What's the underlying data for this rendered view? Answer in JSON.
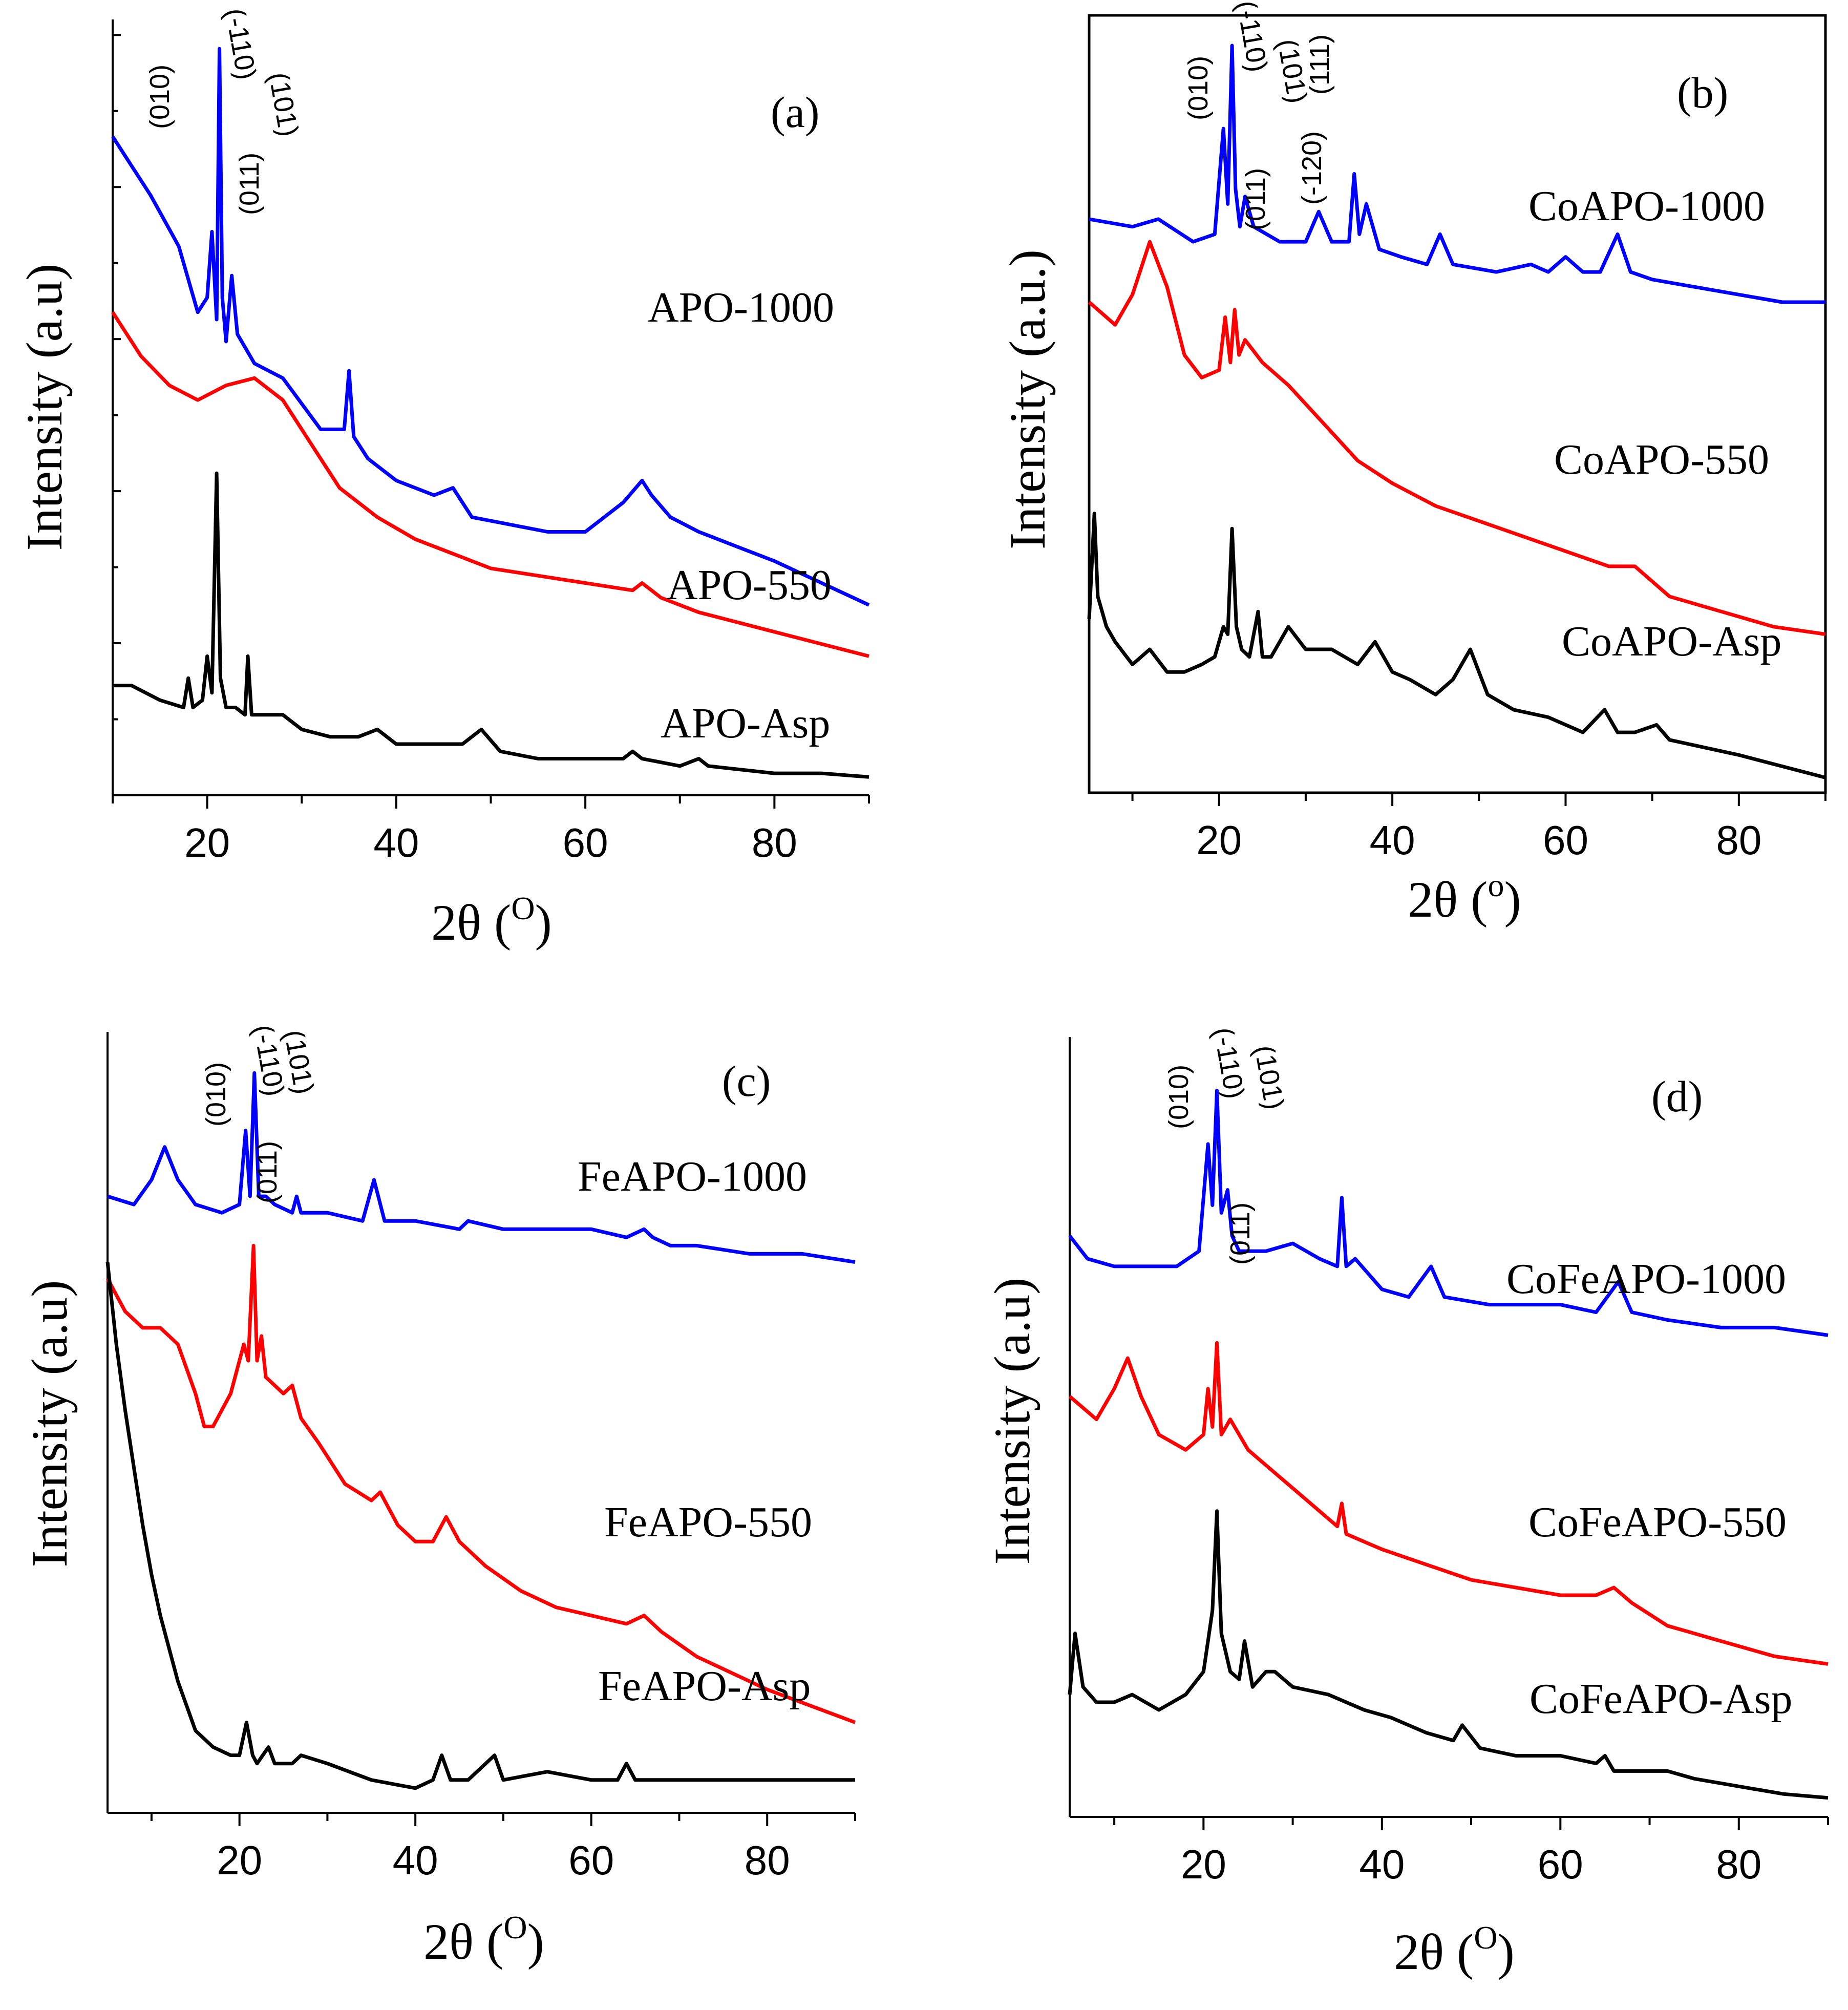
{
  "chart_data": [
    {
      "type": "line",
      "panel_label": "(a)",
      "xlabel": "2θ (",
      "xlabel_unit": "O",
      "xlabel_close": ")",
      "ylabel": "Intensity (a.u)",
      "xlim": [
        10,
        90
      ],
      "xticks": [
        20,
        40,
        60,
        80
      ],
      "xtick_labels": [
        "20",
        "40",
        "60",
        "80"
      ],
      "hkl_labels": [
        "(010)",
        "(-110)",
        "(011)",
        "(101)"
      ],
      "series": [
        {
          "name": "APO-1000",
          "color": "#0000ff",
          "x": [
            10,
            14,
            17,
            19,
            20,
            20.5,
            21,
            21.3,
            21.6,
            22,
            22.6,
            23.2,
            25,
            28,
            32,
            34.5,
            35,
            35.5,
            37,
            40,
            44,
            46,
            48,
            52,
            56,
            60,
            62,
            64,
            66,
            67,
            69,
            72,
            76,
            80,
            85,
            90
          ],
          "y": [
            88,
            80,
            73,
            64,
            66,
            75,
            63,
            100,
            66,
            60,
            69,
            61,
            57,
            55,
            48,
            48,
            56,
            47,
            44,
            41,
            39,
            40,
            36,
            35,
            34,
            34,
            36,
            38,
            41,
            39,
            36,
            34,
            32,
            30,
            27,
            24
          ]
        },
        {
          "name": "APO-550",
          "color": "#ff0000",
          "x": [
            10,
            13,
            16,
            19,
            22,
            25,
            28,
            31,
            34,
            38,
            42,
            46,
            50,
            55,
            60,
            65,
            66,
            68,
            72,
            78,
            84,
            90
          ],
          "y": [
            64,
            58,
            54,
            52,
            54,
            55,
            52,
            46,
            40,
            36,
            33,
            31,
            29,
            28,
            27,
            26,
            27,
            25,
            23,
            21,
            19,
            17
          ]
        },
        {
          "name": "APO-Asp",
          "color": "#000000",
          "x": [
            10,
            12,
            15,
            17.5,
            18,
            18.5,
            19.5,
            20,
            20.5,
            21,
            21.4,
            22,
            23,
            24,
            24.3,
            24.7,
            26,
            28,
            30,
            33,
            36,
            38,
            40,
            44,
            47,
            49,
            51,
            55,
            60,
            64,
            65,
            66,
            70,
            72,
            73,
            80,
            85,
            90
          ],
          "y": [
            13,
            13,
            11,
            10,
            14,
            10,
            11,
            17,
            12,
            42,
            14,
            10,
            10,
            9,
            17,
            9,
            9,
            9,
            7,
            6,
            6,
            7,
            5,
            5,
            5,
            7,
            4,
            3,
            3,
            3,
            4,
            3,
            2,
            3,
            2,
            1,
            1,
            0.5
          ]
        }
      ],
      "annotations": [
        "APO-1000",
        "APO-550",
        "APO-Asp"
      ]
    },
    {
      "type": "line",
      "panel_label": "(b)",
      "xlabel": "2θ (",
      "xlabel_unit": "o",
      "xlabel_close": ")",
      "ylabel": "Intensity (a.u.)",
      "xlim": [
        5,
        90
      ],
      "xticks": [
        20,
        40,
        60,
        80
      ],
      "xtick_labels": [
        "20",
        "40",
        "60",
        "80"
      ],
      "hkl_labels": [
        "(010)",
        "(-110)",
        "(011)",
        "(101)",
        "(-120)",
        "(111)"
      ],
      "series": [
        {
          "name": "CoAPO-1000",
          "color": "#0000ff",
          "x": [
            5,
            10,
            13,
            17,
            19.5,
            20.5,
            21,
            21.5,
            21.9,
            22.4,
            23,
            24,
            27,
            30,
            31.5,
            33,
            35,
            35.6,
            36.2,
            37,
            38.5,
            41,
            44,
            45.5,
            47,
            52,
            56,
            58,
            60,
            62,
            64,
            66,
            67.5,
            70,
            75,
            80,
            85,
            90
          ],
          "y": [
            73,
            72,
            73,
            70,
            71,
            85,
            75,
            96,
            77,
            72,
            76,
            72,
            70,
            70,
            74,
            70,
            70,
            79,
            71,
            75,
            69,
            68,
            67,
            71,
            67,
            66,
            67,
            66,
            68,
            66,
            66,
            71,
            66,
            65,
            64,
            63,
            62,
            62
          ]
        },
        {
          "name": "CoAPO-550",
          "color": "#ff0000",
          "x": [
            5,
            8,
            10,
            12,
            14,
            16,
            18,
            20,
            20.7,
            21.3,
            21.8,
            22.3,
            23,
            25,
            28,
            32,
            36,
            40,
            45,
            50,
            55,
            60,
            65,
            68,
            72,
            78,
            84,
            90
          ],
          "y": [
            62,
            59,
            63,
            70,
            64,
            55,
            52,
            53,
            60,
            54,
            61,
            55,
            57,
            54,
            51,
            46,
            41,
            38,
            35,
            33,
            31,
            29,
            27,
            27,
            23,
            21,
            19,
            18
          ]
        },
        {
          "name": "CoAPO-Asp",
          "color": "#000000",
          "x": [
            5,
            5.6,
            6,
            7,
            8,
            10,
            12,
            14,
            16,
            18,
            19.5,
            20.5,
            21,
            21.5,
            22,
            22.6,
            23.5,
            24.5,
            25,
            26,
            28,
            30,
            33,
            36,
            38,
            40,
            42,
            45,
            47,
            49,
            51,
            54,
            58,
            62,
            64.5,
            66,
            68,
            70.5,
            72,
            76,
            80,
            85,
            90
          ],
          "y": [
            20,
            34,
            23,
            19,
            17,
            14,
            16,
            13,
            13,
            14,
            15,
            19,
            18,
            32,
            19,
            16,
            15,
            21,
            15,
            15,
            19,
            16,
            16,
            14,
            17,
            13,
            12,
            10,
            12,
            16,
            10,
            8,
            7,
            5,
            8,
            5,
            5,
            6,
            4,
            3,
            2,
            0.5,
            -1
          ]
        }
      ],
      "annotations": [
        "CoAPO-1000",
        "CoAPO-550",
        "CoAPO-Asp"
      ]
    },
    {
      "type": "line",
      "panel_label": "(c)",
      "xlabel": "2θ (",
      "xlabel_unit": "O",
      "xlabel_close": ")",
      "ylabel": "Intensity (a.u)",
      "xlim": [
        5,
        90
      ],
      "xticks": [
        20,
        40,
        60,
        80
      ],
      "xtick_labels": [
        "20",
        "40",
        "60",
        "80"
      ],
      "hkl_labels": [
        "(010)",
        "(-110)",
        "(011)",
        "(101)"
      ],
      "series": [
        {
          "name": "FeAPO-1000",
          "color": "#0000ff",
          "x": [
            5,
            8,
            10,
            11.5,
            13,
            15,
            18,
            20,
            20.7,
            21.2,
            21.7,
            22.2,
            23,
            24,
            26,
            26.5,
            27,
            30,
            34,
            35.3,
            36.5,
            40,
            45,
            46,
            50,
            55,
            60,
            64,
            66,
            67,
            69,
            72,
            78,
            84,
            90
          ],
          "y": [
            80,
            79,
            82,
            86,
            82,
            79,
            78,
            79,
            88,
            80,
            95,
            80,
            80,
            79,
            78,
            80,
            78,
            78,
            77,
            82,
            77,
            77,
            76,
            77,
            76,
            76,
            76,
            75,
            76,
            75,
            74,
            74,
            73,
            73,
            72
          ]
        },
        {
          "name": "FeAPO-550",
          "color": "#ff0000",
          "x": [
            5,
            7,
            9,
            11,
            13,
            15,
            16,
            17,
            19,
            20.5,
            21,
            21.6,
            22,
            22.5,
            23,
            25,
            26,
            27,
            29,
            32,
            35,
            36,
            38,
            40,
            42,
            43.5,
            45,
            48,
            52,
            56,
            60,
            64,
            66,
            68,
            72,
            76,
            80,
            85,
            90
          ],
          "y": [
            70,
            66,
            64,
            64,
            62,
            56,
            52,
            52,
            56,
            62,
            60,
            74,
            60,
            63,
            58,
            56,
            57,
            53,
            50,
            45,
            43,
            44,
            40,
            38,
            38,
            41,
            38,
            35,
            32,
            30,
            29,
            28,
            29,
            27,
            24,
            22,
            20,
            18,
            16
          ]
        },
        {
          "name": "FeAPO-Asp",
          "color": "#000000",
          "x": [
            5,
            6,
            7,
            8,
            9,
            10,
            11,
            12,
            13,
            14,
            15,
            17,
            19,
            20,
            20.8,
            21.5,
            22,
            23.3,
            24,
            26,
            27,
            30,
            35,
            40,
            42,
            43,
            44,
            46,
            48,
            49,
            50,
            55,
            60,
            63,
            64,
            65,
            70,
            75,
            80,
            85,
            90
          ],
          "y": [
            72,
            62,
            54,
            47,
            40,
            34,
            29,
            25,
            21,
            18,
            15,
            13,
            12,
            12,
            16,
            12,
            11,
            13,
            11,
            11,
            12,
            11,
            9,
            8,
            9,
            12,
            9,
            9,
            11,
            12,
            9,
            10,
            9,
            9,
            11,
            9,
            9,
            9,
            9,
            9,
            9
          ]
        }
      ],
      "annotations": [
        "FeAPO-1000",
        "FeAPO-550",
        "FeAPO-Asp"
      ]
    },
    {
      "type": "line",
      "panel_label": "(d)",
      "xlabel": "2θ (",
      "xlabel_unit": "O",
      "xlabel_close": ")",
      "ylabel": "Intensity (a.u)",
      "xlim": [
        5,
        90
      ],
      "xticks": [
        20,
        40,
        60,
        80
      ],
      "xtick_labels": [
        "20",
        "40",
        "60",
        "80"
      ],
      "hkl_labels": [
        "(010)",
        "(-110)",
        "(011)",
        "(101)"
      ],
      "series": [
        {
          "name": "CoFeAPO-1000",
          "color": "#0000ff",
          "x": [
            5,
            7,
            10,
            14,
            17,
            19.5,
            20.5,
            21,
            21.5,
            22,
            22.7,
            23.2,
            24,
            27,
            30,
            33,
            35,
            35.5,
            36,
            37,
            40,
            43,
            45.5,
            47,
            52,
            56,
            60,
            64,
            66.5,
            68,
            72,
            78,
            84,
            90
          ],
          "y": [
            74,
            71,
            70,
            70,
            70,
            72,
            86,
            78,
            93,
            77,
            80,
            74,
            72,
            72,
            73,
            71,
            70,
            79,
            70,
            71,
            67,
            66,
            70,
            66,
            65,
            65,
            65,
            64,
            68,
            64,
            63,
            62,
            62,
            61
          ]
        },
        {
          "name": "CoFeAPO-550",
          "color": "#ff0000",
          "x": [
            5,
            8,
            10,
            11.5,
            13,
            15,
            18,
            20,
            20.5,
            21,
            21.5,
            22,
            23,
            25,
            28,
            32,
            35,
            35.5,
            36,
            40,
            45,
            50,
            55,
            60,
            64,
            66,
            68,
            72,
            78,
            84,
            90
          ],
          "y": [
            53,
            50,
            54,
            58,
            53,
            48,
            46,
            48,
            54,
            49,
            60,
            48,
            50,
            46,
            43,
            39,
            36,
            39,
            35,
            33,
            31,
            29,
            28,
            27,
            27,
            28,
            26,
            23,
            21,
            19,
            18
          ]
        },
        {
          "name": "CoFeAPO-Asp",
          "color": "#000000",
          "x": [
            5,
            5.6,
            6.5,
            8,
            10,
            12,
            15,
            18,
            20,
            21,
            21.5,
            22,
            23,
            24,
            24.6,
            25.5,
            27,
            28,
            30,
            34,
            38,
            41,
            45,
            48,
            49,
            51,
            55,
            60,
            64,
            65,
            66,
            70,
            72,
            75,
            80,
            85,
            90
          ],
          "y": [
            14,
            22,
            15,
            13,
            13,
            14,
            12,
            14,
            17,
            25,
            38,
            22,
            17,
            16,
            21,
            15,
            17,
            17,
            15,
            14,
            12,
            11,
            9,
            8,
            10,
            7,
            6,
            6,
            5,
            6,
            4,
            4,
            4,
            3,
            2,
            1,
            0.5
          ]
        }
      ],
      "annotations": [
        "CoFeAPO-1000",
        "CoFeAPO-550",
        "CoFeAPO-Asp"
      ]
    }
  ]
}
